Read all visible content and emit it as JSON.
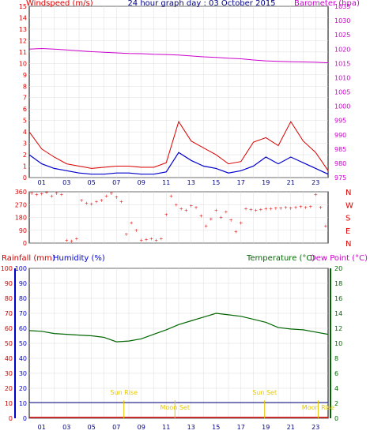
{
  "colors": {
    "wind": "#dd0000",
    "gust_bg": "#0000cc",
    "baro": "#cc00cc",
    "temp": "#006600",
    "dew": "#cc0000",
    "rain": "#cc0000",
    "hum": "#0000cc",
    "sun": "#e6c800",
    "grid": "#dcdcdc",
    "frame": "#000000"
  },
  "chart_data": [
    {
      "type": "line",
      "title": "24 hour graph day : 03 October 2015",
      "ylabel": "Windspeed (m/s)",
      "y2label": "Barometer (hpa)",
      "hours": [
        "01",
        "03",
        "05",
        "07",
        "09",
        "11",
        "13",
        "15",
        "17",
        "19",
        "21",
        "23"
      ],
      "ylim": [
        0,
        15
      ],
      "y_ticks": [
        "0",
        "1",
        "2",
        "3",
        "4",
        "5",
        "6",
        "7",
        "8",
        "9",
        "10",
        "11",
        "12",
        "13",
        "14",
        "15"
      ],
      "y2lim": [
        975,
        1035
      ],
      "y2_ticks": [
        "975",
        "980",
        "985",
        "990",
        "995",
        "1000",
        "1005",
        "1010",
        "1015",
        "1020",
        "1025",
        "1030",
        "1035"
      ],
      "series": [
        {
          "name": "Windspeed",
          "x": [
            0,
            1,
            2,
            3,
            4,
            5,
            6,
            7,
            8,
            9,
            10,
            11,
            12,
            13,
            14,
            15,
            16,
            17,
            18,
            19,
            20,
            21,
            22,
            23,
            24
          ],
          "values": [
            2.0,
            1.2,
            0.8,
            0.6,
            0.4,
            0.3,
            0.3,
            0.4,
            0.4,
            0.3,
            0.3,
            0.5,
            2.2,
            1.5,
            1.0,
            0.8,
            0.4,
            0.6,
            1.0,
            1.8,
            1.2,
            1.8,
            1.3,
            0.8,
            0.3
          ]
        },
        {
          "name": "Gust",
          "x": [
            0,
            1,
            2,
            3,
            4,
            5,
            6,
            7,
            8,
            9,
            10,
            11,
            12,
            13,
            14,
            15,
            16,
            17,
            18,
            19,
            20,
            21,
            22,
            23,
            24
          ],
          "values": [
            4.0,
            2.5,
            1.8,
            1.2,
            1.0,
            0.8,
            0.9,
            1.0,
            1.0,
            0.9,
            0.9,
            1.3,
            4.9,
            3.2,
            2.6,
            2.0,
            1.2,
            1.4,
            3.1,
            3.5,
            2.8,
            4.9,
            3.2,
            2.2,
            0.6
          ]
        },
        {
          "name": "Barometer",
          "x": [
            0,
            1,
            2,
            3,
            4,
            5,
            6,
            7,
            8,
            9,
            10,
            11,
            12,
            13,
            14,
            15,
            16,
            17,
            18,
            19,
            20,
            21,
            22,
            23,
            24
          ],
          "values": [
            1020.0,
            1020.2,
            1020.0,
            1019.7,
            1019.4,
            1019.1,
            1018.9,
            1018.7,
            1018.5,
            1018.4,
            1018.2,
            1018.1,
            1017.9,
            1017.6,
            1017.3,
            1017.1,
            1016.8,
            1016.6,
            1016.2,
            1015.9,
            1015.7,
            1015.6,
            1015.5,
            1015.4,
            1015.2
          ]
        }
      ]
    },
    {
      "type": "scatter",
      "ylabel_ticks": [
        "360",
        "270",
        "180",
        "90",
        "0"
      ],
      "ylim": [
        0,
        360
      ],
      "compass": [
        "N",
        "W",
        "S",
        "E",
        "N"
      ],
      "series": [
        {
          "name": "Wind direction",
          "points": [
            [
              0.2,
              350
            ],
            [
              0.6,
              340
            ],
            [
              1.0,
              345
            ],
            [
              1.4,
              355
            ],
            [
              1.8,
              330
            ],
            [
              2.2,
              350
            ],
            [
              2.6,
              340
            ],
            [
              3.0,
              20
            ],
            [
              3.4,
              15
            ],
            [
              3.8,
              30
            ],
            [
              4.2,
              300
            ],
            [
              4.6,
              280
            ],
            [
              5.0,
              275
            ],
            [
              5.4,
              290
            ],
            [
              5.8,
              300
            ],
            [
              6.2,
              330
            ],
            [
              6.6,
              350
            ],
            [
              7.0,
              320
            ],
            [
              7.4,
              290
            ],
            [
              7.8,
              60
            ],
            [
              8.2,
              140
            ],
            [
              8.6,
              90
            ],
            [
              9.0,
              20
            ],
            [
              9.4,
              25
            ],
            [
              9.8,
              30
            ],
            [
              10.2,
              20
            ],
            [
              10.6,
              30
            ],
            [
              11.0,
              200
            ],
            [
              11.4,
              330
            ],
            [
              11.8,
              270
            ],
            [
              12.2,
              240
            ],
            [
              12.6,
              230
            ],
            [
              13.0,
              260
            ],
            [
              13.4,
              250
            ],
            [
              13.8,
              190
            ],
            [
              14.2,
              120
            ],
            [
              14.6,
              170
            ],
            [
              15.0,
              230
            ],
            [
              15.4,
              180
            ],
            [
              15.8,
              220
            ],
            [
              16.2,
              160
            ],
            [
              16.6,
              80
            ],
            [
              17.0,
              140
            ],
            [
              17.4,
              240
            ],
            [
              17.8,
              235
            ],
            [
              18.2,
              230
            ],
            [
              18.6,
              235
            ],
            [
              19.0,
              240
            ],
            [
              19.4,
              240
            ],
            [
              19.8,
              245
            ],
            [
              20.2,
              245
            ],
            [
              20.6,
              250
            ],
            [
              21.0,
              245
            ],
            [
              21.4,
              250
            ],
            [
              21.8,
              255
            ],
            [
              22.2,
              250
            ],
            [
              22.6,
              255
            ],
            [
              23.0,
              340
            ],
            [
              23.4,
              250
            ],
            [
              23.8,
              120
            ]
          ]
        }
      ]
    },
    {
      "type": "line",
      "ylabel": "Rainfall (mm)",
      "ylabel2": "Humidity (%)",
      "y2label": "Temperature (°C)",
      "y2label_dew": "Dew Point (°C)",
      "ylim": [
        0,
        100
      ],
      "y_ticks": [
        "0",
        "10",
        "20",
        "30",
        "40",
        "50",
        "60",
        "70",
        "80",
        "90",
        "100"
      ],
      "y2lim": [
        0,
        20
      ],
      "y2_ticks": [
        "0",
        "2",
        "4",
        "6",
        "8",
        "10",
        "12",
        "14",
        "16",
        "18",
        "20"
      ],
      "hours": [
        "01",
        "03",
        "05",
        "07",
        "09",
        "11",
        "13",
        "15",
        "17",
        "19",
        "21",
        "23"
      ],
      "annotations": [
        {
          "text": "Sun Rise",
          "hour": 7.6
        },
        {
          "text": "Moon Set",
          "hour": 11.7
        },
        {
          "text": "Sun Set",
          "hour": 18.9
        },
        {
          "text": "Moon Rise",
          "hour": 23.2
        }
      ],
      "series": [
        {
          "name": "Temperature",
          "x": [
            0,
            1,
            2,
            3,
            4,
            5,
            6,
            7,
            8,
            9,
            10,
            11,
            12,
            13,
            14,
            15,
            16,
            17,
            18,
            19,
            20,
            21,
            22,
            23,
            24
          ],
          "values": [
            11.7,
            11.6,
            11.3,
            11.2,
            11.1,
            11.0,
            10.8,
            10.2,
            10.3,
            10.6,
            11.2,
            11.8,
            12.5,
            13.0,
            13.5,
            14.0,
            13.8,
            13.6,
            13.2,
            12.8,
            12.1,
            11.9,
            11.8,
            11.5,
            11.2
          ]
        },
        {
          "name": "Dew Point",
          "x": [
            0,
            24
          ],
          "values": [
            2.1,
            2.1
          ]
        }
      ]
    }
  ]
}
